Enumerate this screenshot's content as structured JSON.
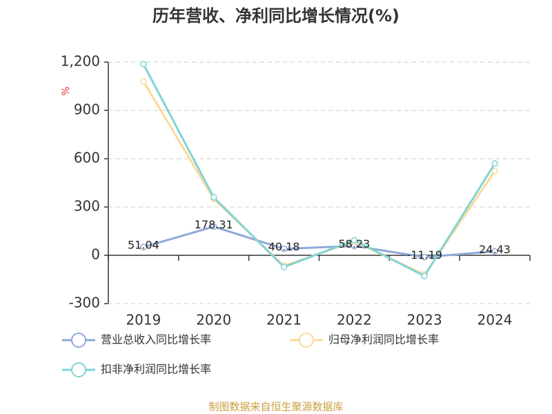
{
  "chart_data": {
    "type": "line",
    "title": "历年营收、净利同比增长情况(%)",
    "y_unit": "%",
    "categories": [
      "2019",
      "2020",
      "2021",
      "2022",
      "2023",
      "2024"
    ],
    "series": [
      {
        "name": "营业总收入同比增长率",
        "color": "#8fa8d8",
        "values": [
          51.04,
          178.31,
          40.18,
          58.23,
          -11.19,
          24.43
        ],
        "show_labels": true
      },
      {
        "name": "归母净利润同比增长率",
        "color": "#fbd99a",
        "values": [
          1080,
          350,
          -65,
          85,
          -120,
          523
        ],
        "show_labels": false
      },
      {
        "name": "扣非净利润同比增长率",
        "color": "#80d4d4",
        "values": [
          1187,
          360,
          -73,
          94,
          -129,
          570
        ],
        "show_labels": false
      }
    ],
    "ylim": [
      -300,
      1200
    ],
    "yticks": [
      -300,
      0,
      300,
      600,
      900,
      {
        "value": 1200,
        "label": "1,200"
      }
    ],
    "grid": true,
    "source": "制图数据来自恒生聚源数据库"
  }
}
